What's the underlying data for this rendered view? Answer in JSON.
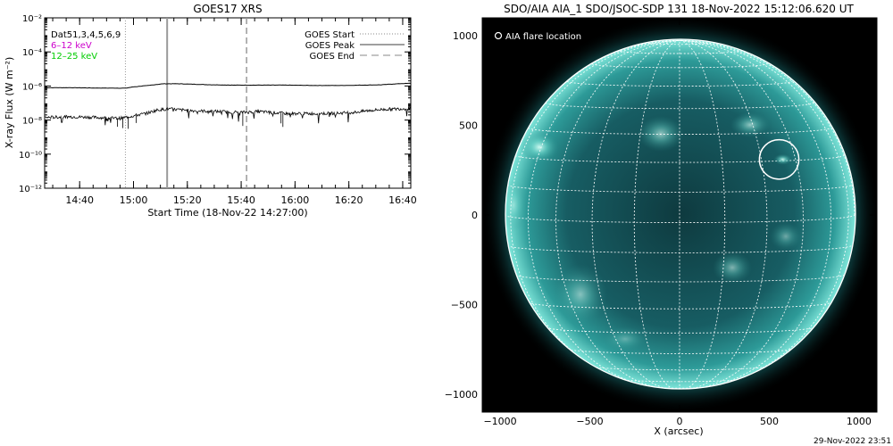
{
  "footer": {
    "timestamp": "29-Nov-2022 23:51"
  },
  "chart_data": [
    {
      "type": "line",
      "title": "GOES17 XRS",
      "xlabel": "Start Time (18-Nov-22 14:27:00)",
      "ylabel": "X-ray Flux (W m⁻²)",
      "x_unit": "minutes after 14:27:00 UT",
      "xlim": [
        0,
        136
      ],
      "ylim_log10": [
        -12,
        -2
      ],
      "y_scale": "log",
      "x_ticks": [
        {
          "t": 13,
          "label": "14:40"
        },
        {
          "t": 33,
          "label": "15:00"
        },
        {
          "t": 53,
          "label": "15:20"
        },
        {
          "t": 73,
          "label": "15:40"
        },
        {
          "t": 93,
          "label": "16:00"
        },
        {
          "t": 113,
          "label": "16:20"
        },
        {
          "t": 133,
          "label": "16:40"
        }
      ],
      "y_ticks": [
        {
          "exp": -2,
          "label": "10⁻²"
        },
        {
          "exp": -4,
          "label": "10⁻⁴"
        },
        {
          "exp": -6,
          "label": "10⁻⁶"
        },
        {
          "exp": -8,
          "label": "10⁻⁸"
        },
        {
          "exp": -10,
          "label": "10⁻¹⁰"
        },
        {
          "exp": -12,
          "label": "10⁻¹²"
        }
      ],
      "annotations": [
        {
          "text": "Dat51,3,4,5,6,9",
          "color": "#000000"
        },
        {
          "text": "6–12 keV",
          "color": "#cc00cc"
        },
        {
          "text": "12–25 keV",
          "color": "#00cc00"
        }
      ],
      "legend": {
        "placement": "top-right",
        "entries": [
          {
            "label": "GOES Start",
            "style": "dotted"
          },
          {
            "label": "GOES Peak",
            "style": "solid"
          },
          {
            "label": "GOES End",
            "style": "dashed"
          }
        ]
      },
      "event_markers": [
        {
          "name": "GOES Start",
          "t": 30,
          "style": "dotted"
        },
        {
          "name": "GOES Peak",
          "t": 45.5,
          "style": "solid"
        },
        {
          "name": "GOES End",
          "t": 75,
          "style": "dashed"
        }
      ],
      "series": [
        {
          "name": "12–25 keV",
          "x": [
            0,
            10,
            20,
            30,
            33,
            38,
            44,
            50,
            60,
            70,
            80,
            90,
            100,
            110,
            118,
            125,
            130,
            136
          ],
          "y_log10": [
            -6.1,
            -6.1,
            -6.12,
            -6.13,
            -6.05,
            -5.98,
            -5.87,
            -5.87,
            -5.92,
            -5.95,
            -5.95,
            -5.95,
            -5.97,
            -5.97,
            -5.95,
            -5.93,
            -5.88,
            -5.84
          ]
        },
        {
          "name": "6–12 keV",
          "x": [
            0,
            10,
            20,
            28,
            33,
            38,
            42,
            46,
            55,
            65,
            73,
            80,
            90,
            100,
            108,
            115,
            120,
            125,
            130,
            136
          ],
          "y_log10": [
            -7.85,
            -7.8,
            -7.85,
            -7.9,
            -7.75,
            -7.6,
            -7.4,
            -7.35,
            -7.45,
            -7.5,
            -7.55,
            -7.5,
            -7.62,
            -7.62,
            -7.6,
            -7.55,
            -7.45,
            -7.38,
            -7.35,
            -7.32
          ]
        }
      ]
    },
    {
      "type": "image",
      "title": "SDO/AIA AIA_1 SDO/JSOC-SDP 131 18-Nov-2022 15:12:06.620 UT",
      "xlabel": "X (arcsec)",
      "ylabel": "",
      "xlim": [
        -1100,
        1100
      ],
      "ylim": [
        -1100,
        1100
      ],
      "x_ticks": [
        -1000,
        -500,
        0,
        500,
        1000
      ],
      "y_ticks": [
        -1000,
        -500,
        0,
        500,
        1000
      ],
      "legend": {
        "placement": "top-left",
        "entries": [
          {
            "label": "AIA flare location",
            "marker": "circle"
          }
        ]
      },
      "solar_radius_arcsec": 975,
      "flare_location": {
        "x": 555,
        "y": 310,
        "radius_arcsec": 55
      },
      "colormap": "aia-131-teal",
      "grid": true
    }
  ]
}
